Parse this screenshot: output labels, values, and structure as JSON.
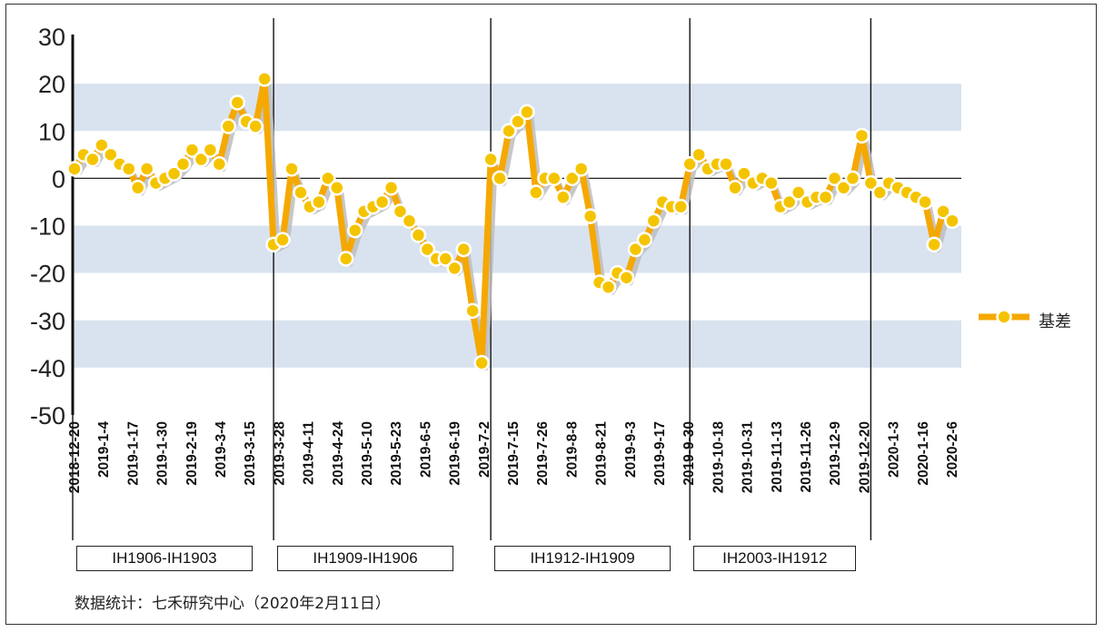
{
  "chart_data": {
    "type": "line",
    "title": "",
    "xlabel": "",
    "ylabel": "",
    "ylim": [
      -50,
      30
    ],
    "yticks": [
      30,
      20,
      10,
      0,
      -10,
      -20,
      -30,
      -40,
      -50
    ],
    "xtick_labels": [
      "2018-12-20",
      "2019-1-4",
      "2019-1-17",
      "2019-1-30",
      "2019-2-19",
      "2019-3-4",
      "2019-3-15",
      "2019-3-28",
      "2019-4-11",
      "2019-4-24",
      "2019-5-10",
      "2019-5-23",
      "2019-6-5",
      "2019-6-19",
      "2019-7-2",
      "2019-7-15",
      "2019-7-26",
      "2019-8-8",
      "2019-8-21",
      "2019-9-3",
      "2019-9-17",
      "2019-9-30",
      "2019-10-18",
      "2019-10-31",
      "2019-11-13",
      "2019-11-26",
      "2019-12-9",
      "2019-12-20",
      "2020-1-3",
      "2020-1-16",
      "2020-2-6"
    ],
    "grid": "alternating horizontal bands",
    "legend": "right",
    "series": [
      {
        "name": "基差",
        "color": "#F5A800",
        "marker_fill": "#F5C400",
        "values": [
          2,
          5,
          4,
          7,
          5,
          3,
          2,
          -2,
          2,
          -1,
          0,
          1,
          3,
          6,
          4,
          6,
          3,
          11,
          16,
          12,
          11,
          21,
          -14,
          -13,
          2,
          -3,
          -6,
          -5,
          0,
          -2,
          -17,
          -11,
          -7,
          -6,
          -5,
          -2,
          -7,
          -9,
          -12,
          -15,
          -17,
          -17,
          -19,
          -15,
          -28,
          -39,
          4,
          0,
          10,
          12,
          14,
          -3,
          0,
          0,
          -4,
          0,
          2,
          -8,
          -22,
          -23,
          -20,
          -21,
          -15,
          -13,
          -9,
          -5,
          -6,
          -6,
          3,
          5,
          2,
          3,
          3,
          -2,
          1,
          -1,
          0,
          -1,
          -6,
          -5,
          -3,
          -5,
          -4,
          -4,
          0,
          -2,
          0,
          9,
          -1,
          -3,
          -1,
          -2,
          -3,
          -4,
          -5,
          -14,
          -7,
          -9
        ]
      }
    ],
    "contract_periods": [
      {
        "label": "IH1906-IH1903",
        "start_index": 0,
        "end_index": 22
      },
      {
        "label": "IH1909-IH1906",
        "start_index": 22,
        "end_index": 46
      },
      {
        "label": "IH1912-IH1909",
        "start_index": 46,
        "end_index": 68
      },
      {
        "label": "IH2003-IH1912",
        "start_index": 68,
        "end_index": 88
      }
    ],
    "legend_entries": [
      "基差"
    ]
  },
  "footer": "数据统计：七禾研究中心（2020年2月11日）",
  "colors": {
    "band": "#D9E3EF",
    "line": "#F5A800",
    "shadow": "#BDBDBD",
    "axis": "#111111"
  }
}
